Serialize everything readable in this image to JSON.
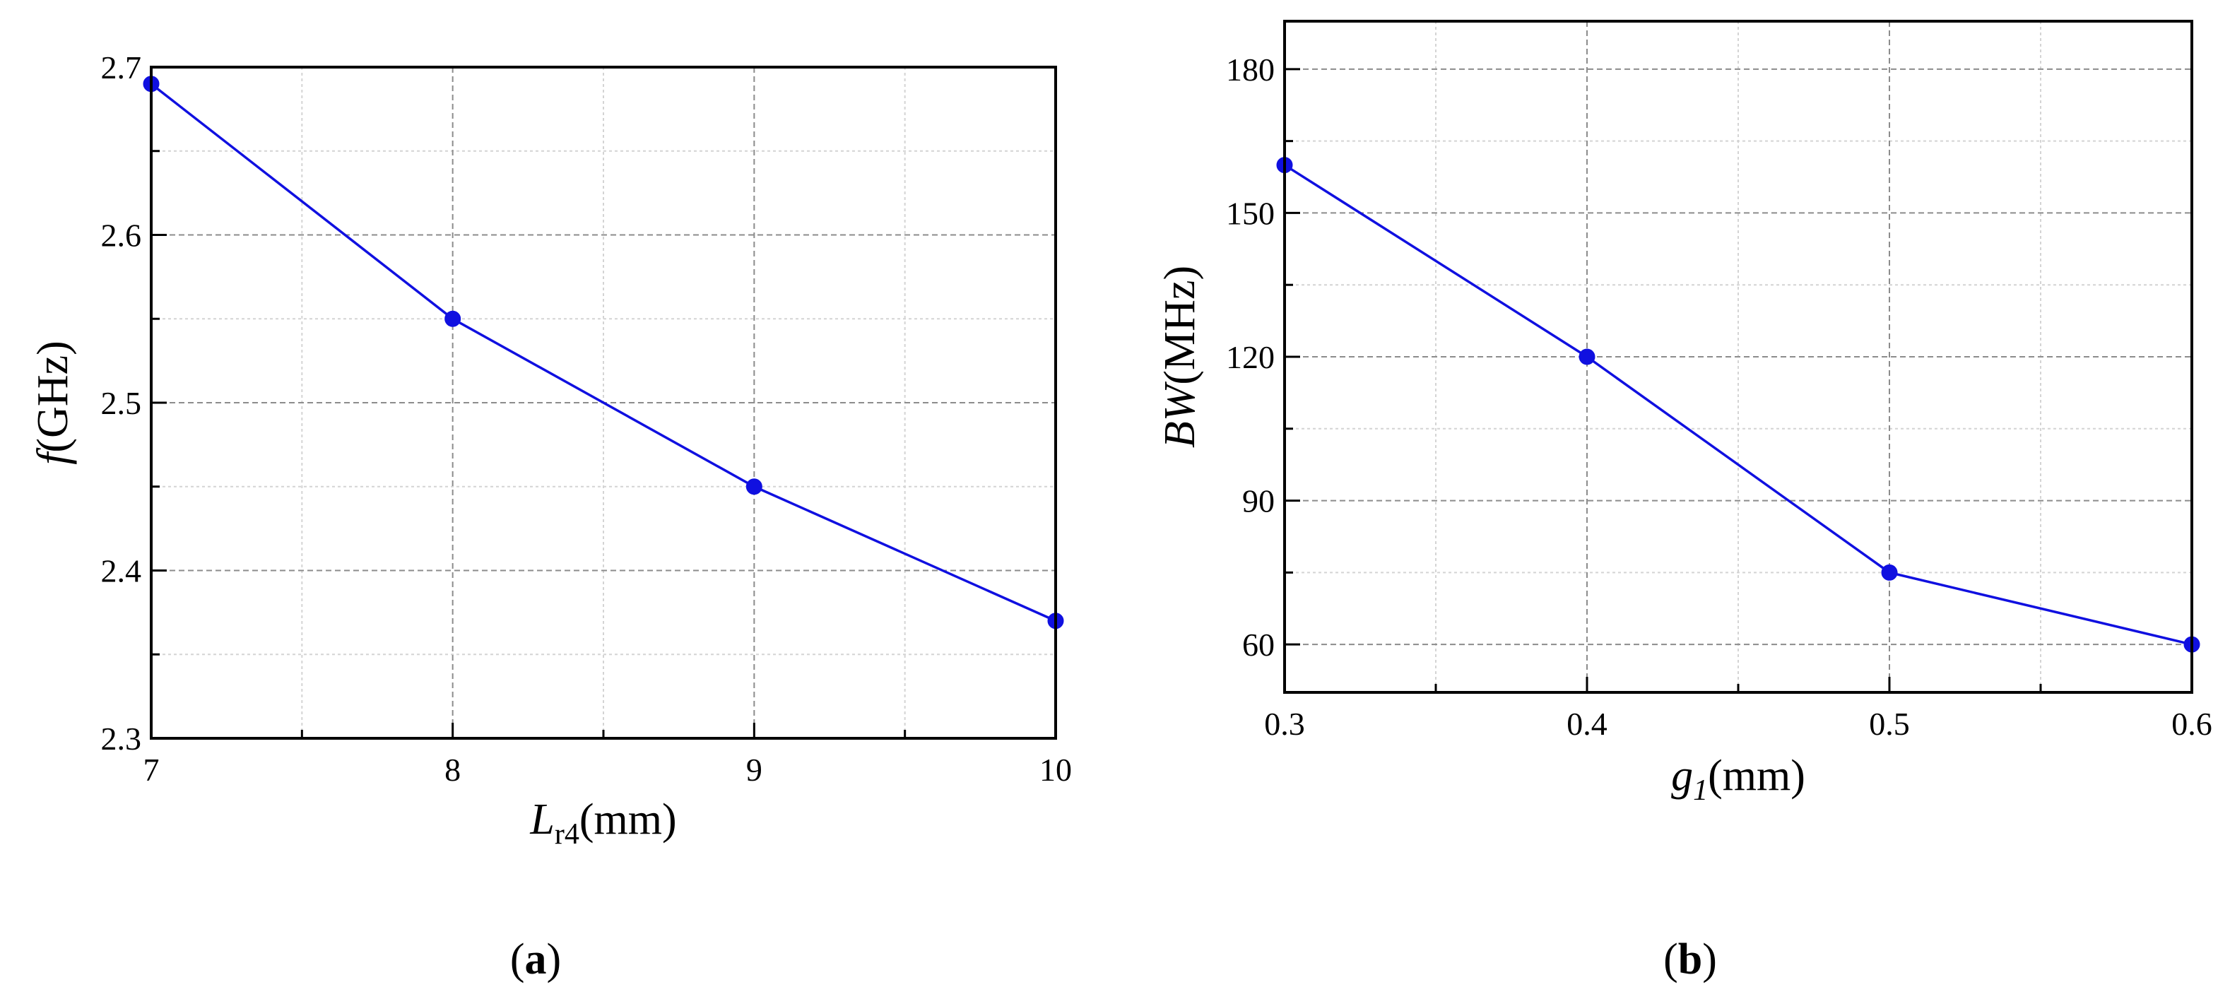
{
  "chart_data": [
    {
      "type": "line",
      "panel_label": "a",
      "x": [
        7,
        8,
        9,
        10
      ],
      "series": [
        {
          "name": "f",
          "values": [
            2.69,
            2.55,
            2.45,
            2.37
          ]
        }
      ],
      "xlim": [
        7,
        10
      ],
      "ylim": [
        2.3,
        2.7
      ],
      "xticks": [
        7,
        8,
        9,
        10
      ],
      "yticks": [
        2.3,
        2.4,
        2.5,
        2.6,
        2.7
      ],
      "xtick_labels": [
        "7",
        "8",
        "9",
        "10"
      ],
      "ytick_labels": [
        "2.3",
        "2.4",
        "2.5",
        "2.6",
        "2.7"
      ],
      "xminor": [
        7.5,
        8.5,
        9.5
      ],
      "yminor": [
        2.35,
        2.45,
        2.55,
        2.65
      ],
      "xlabel_main": "L",
      "xlabel_sub": "r4",
      "xlabel_unit": "(mm)",
      "ylabel_main": "f",
      "ylabel_unit": "(GHz)",
      "grid": true,
      "color": "#1010e0"
    },
    {
      "type": "line",
      "panel_label": "b",
      "x": [
        0.3,
        0.4,
        0.5,
        0.6
      ],
      "series": [
        {
          "name": "BW",
          "values": [
            160,
            120,
            75,
            60
          ]
        }
      ],
      "xlim": [
        0.3,
        0.6
      ],
      "ylim": [
        50,
        190
      ],
      "xticks": [
        0.3,
        0.4,
        0.5,
        0.6
      ],
      "yticks": [
        60,
        90,
        120,
        150,
        180
      ],
      "xtick_labels": [
        "0.3",
        "0.4",
        "0.5",
        "0.6"
      ],
      "ytick_labels": [
        "60",
        "90",
        "120",
        "150",
        "180"
      ],
      "xminor": [
        0.35,
        0.45,
        0.55
      ],
      "yminor": [
        75,
        105,
        135,
        165
      ],
      "xlabel_main": "g",
      "xlabel_sub": "1",
      "xlabel_unit": "(mm)",
      "ylabel_main": "BW",
      "ylabel_unit": "(MHz)",
      "grid": true,
      "color": "#1010e0"
    }
  ]
}
